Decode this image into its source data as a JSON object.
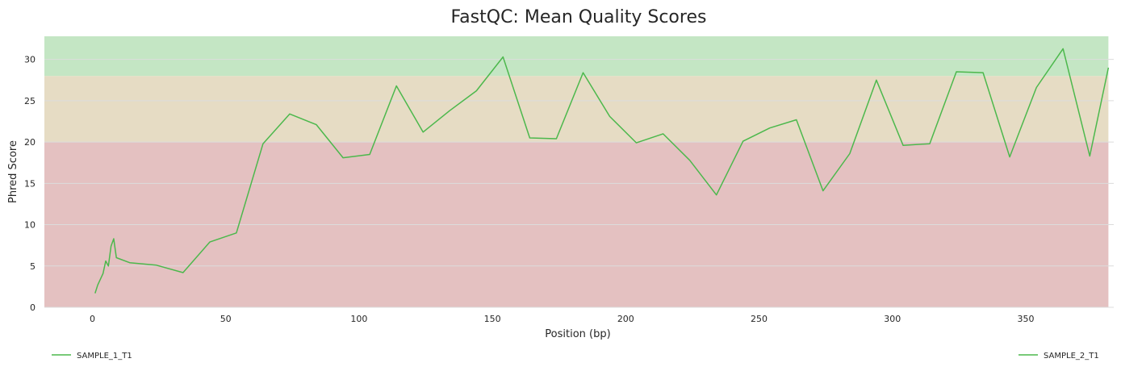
{
  "chart_data": {
    "type": "line",
    "title": "FastQC: Mean Quality Scores",
    "xlabel": "Position (bp)",
    "ylabel": "Phred Score",
    "xlim": [
      -18,
      383
    ],
    "ylim": [
      0,
      32.8
    ],
    "xticks": [
      0,
      50,
      100,
      150,
      200,
      250,
      300,
      350
    ],
    "yticks": [
      0,
      5,
      10,
      15,
      20,
      25,
      30
    ],
    "grid": "horizontal",
    "bands": [
      {
        "from": 0,
        "to": 20,
        "color": "#e4c1c1"
      },
      {
        "from": 20,
        "to": 28,
        "color": "#e6dcc4"
      },
      {
        "from": 28,
        "to": 32.8,
        "color": "#c4e6c4"
      }
    ],
    "band_x_range": [
      -18,
      381
    ],
    "line_color": "#4cb84c",
    "legend": [
      {
        "name": "SAMPLE_1_T1",
        "placement": "bottom-left"
      },
      {
        "name": "SAMPLE_2_T1",
        "placement": "bottom-right"
      }
    ],
    "series": [
      {
        "name": "SAMPLE_1_T1",
        "x": [
          1,
          2,
          3,
          4,
          5,
          6,
          7,
          8,
          9,
          14,
          24,
          34,
          44,
          54,
          64,
          74,
          84,
          94,
          104,
          114,
          124,
          134,
          144,
          154,
          164,
          174,
          184,
          194,
          204,
          214,
          224,
          234,
          244,
          254,
          264,
          274,
          284,
          294,
          304,
          314,
          324,
          334,
          344,
          354,
          364,
          374,
          381
        ],
        "y": [
          1.7,
          2.7,
          3.4,
          4.1,
          5.6,
          5.0,
          7.4,
          8.3,
          6.0,
          5.4,
          5.1,
          4.2,
          7.9,
          9.0,
          19.8,
          23.4,
          22.1,
          18.1,
          18.5,
          26.8,
          21.2,
          23.8,
          26.2,
          30.3,
          20.5,
          20.4,
          28.4,
          23.1,
          19.9,
          21.0,
          17.8,
          13.6,
          20.1,
          21.7,
          22.7,
          14.1,
          18.6,
          27.5,
          19.6,
          19.8,
          28.5,
          28.4,
          18.2,
          26.6,
          31.3,
          18.3,
          29.0
        ]
      }
    ]
  }
}
